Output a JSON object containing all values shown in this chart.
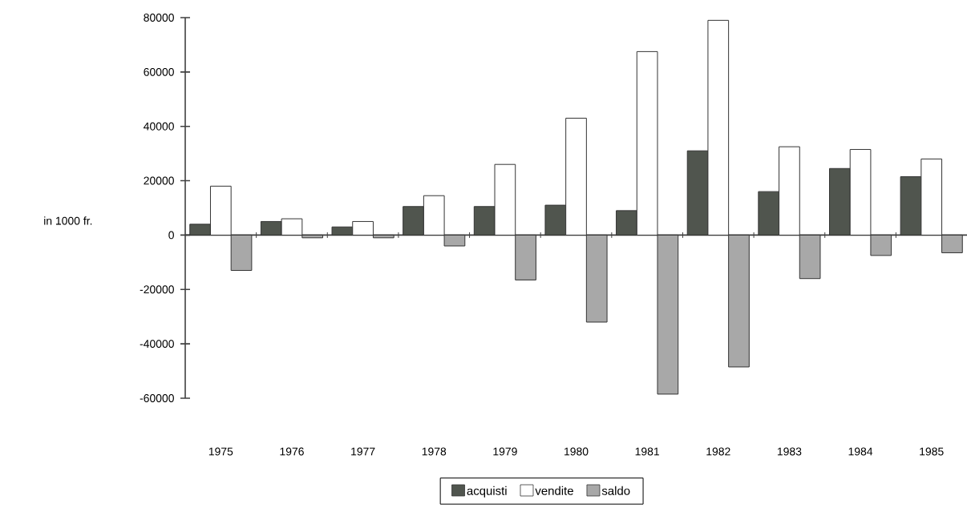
{
  "chart_data": {
    "type": "bar",
    "ylabel": "in 1000 fr.",
    "categories": [
      "1975",
      "1976",
      "1977",
      "1978",
      "1979",
      "1980",
      "1981",
      "1982",
      "1983",
      "1984",
      "1985"
    ],
    "series": [
      {
        "name": "acquisti",
        "color": "#50554e",
        "values": [
          4000,
          5000,
          3000,
          10500,
          10500,
          11000,
          9000,
          31000,
          16000,
          24500,
          21500
        ]
      },
      {
        "name": "vendite",
        "color": "#ffffff",
        "values": [
          18000,
          6000,
          5000,
          14500,
          26000,
          43000,
          67500,
          79000,
          32500,
          31500,
          28000
        ]
      },
      {
        "name": "saldo",
        "color": "#a8a8a8",
        "values": [
          -13000,
          -1000,
          -1000,
          -4000,
          -16500,
          -32000,
          -58500,
          -48500,
          -16000,
          -7500,
          -6500
        ]
      }
    ],
    "ylim": [
      -60000,
      80000
    ],
    "yticks": [
      -60000,
      -40000,
      -20000,
      0,
      20000,
      40000,
      60000,
      80000
    ],
    "legend": "bottom"
  }
}
